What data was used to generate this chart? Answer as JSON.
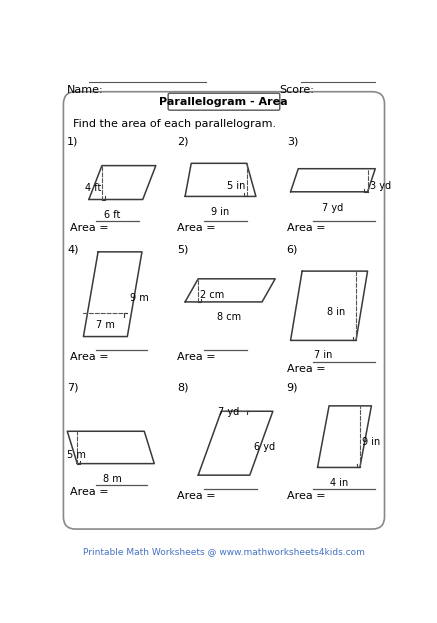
{
  "title": "Parallelogram - Area",
  "instruction": "Find the area of each parallelogram.",
  "name_label": "Name:",
  "score_label": "Score:",
  "footer": "Printable Math Worksheets @ www.mathworksheets4kids.com",
  "bg_color": "#ffffff",
  "shape_color": "#4a4a4a",
  "text_color": "#000000",
  "footer_color": "#4472c4",
  "line_color": "#888888"
}
